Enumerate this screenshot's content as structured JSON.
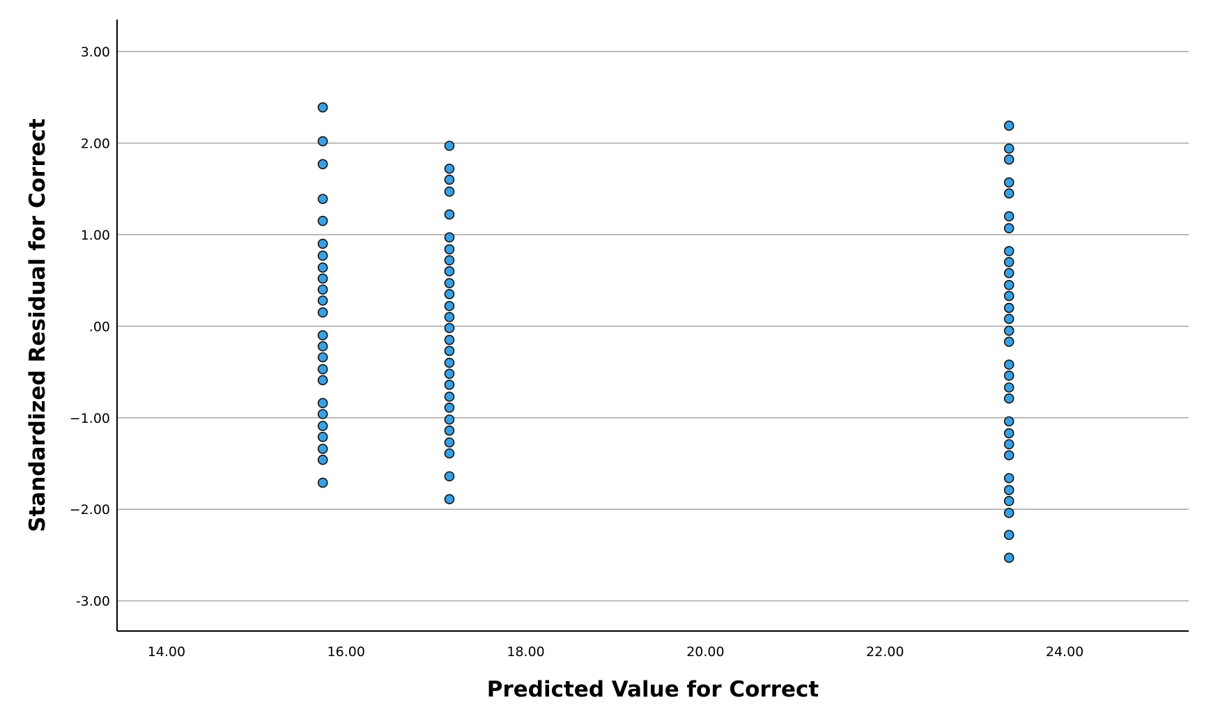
{
  "chart_data": {
    "type": "scatter",
    "title": "",
    "xlabel": "Predicted Value for Correct",
    "ylabel": "Standardized Residual for Correct",
    "xlim": [
      13.45,
      25.38
    ],
    "ylim": [
      -3.33,
      3.35
    ],
    "x_ticks": [
      {
        "value": 14,
        "label": "14.00"
      },
      {
        "value": 16,
        "label": "16.00"
      },
      {
        "value": 18,
        "label": "18.00"
      },
      {
        "value": 20,
        "label": "20.00"
      },
      {
        "value": 22,
        "label": "22.00"
      },
      {
        "value": 24,
        "label": "24.00"
      }
    ],
    "y_ticks": [
      {
        "value": 3,
        "label": "3.00"
      },
      {
        "value": 2,
        "label": "2.00"
      },
      {
        "value": 1,
        "label": "1.00"
      },
      {
        "value": 0,
        "label": ".00"
      },
      {
        "value": -1,
        "label": "−1.00"
      },
      {
        "value": -2,
        "label": "−2.00"
      },
      {
        "value": -3,
        "label": "-3.00"
      }
    ],
    "grid": {
      "horizontal": true,
      "vertical": false
    },
    "marker_color": "#3aa0e2",
    "marker_edge_color": "#111111",
    "series": [
      {
        "x": 15.74,
        "y": [
          2.39,
          2.02,
          1.77,
          1.39,
          1.15,
          0.9,
          0.77,
          0.64,
          0.52,
          0.4,
          0.28,
          0.15,
          -0.1,
          -0.22,
          -0.34,
          -0.47,
          -0.59,
          -0.84,
          -0.96,
          -1.09,
          -1.21,
          -1.34,
          -1.46,
          -1.71
        ]
      },
      {
        "x": 17.15,
        "y": [
          1.97,
          1.72,
          1.6,
          1.47,
          1.22,
          0.97,
          0.84,
          0.72,
          0.6,
          0.47,
          0.35,
          0.22,
          0.1,
          -0.02,
          -0.15,
          -0.27,
          -0.4,
          -0.52,
          -0.64,
          -0.77,
          -0.89,
          -1.02,
          -1.14,
          -1.27,
          -1.39,
          -1.64,
          -1.89
        ]
      },
      {
        "x": 23.38,
        "y": [
          2.19,
          1.94,
          1.82,
          1.57,
          1.45,
          1.2,
          1.07,
          0.82,
          0.7,
          0.58,
          0.45,
          0.33,
          0.2,
          0.08,
          -0.05,
          -0.17,
          -0.42,
          -0.54,
          -0.67,
          -0.79,
          -1.04,
          -1.17,
          -1.29,
          -1.41,
          -1.66,
          -1.79,
          -1.91,
          -2.04,
          -2.28,
          -2.53
        ]
      }
    ]
  }
}
